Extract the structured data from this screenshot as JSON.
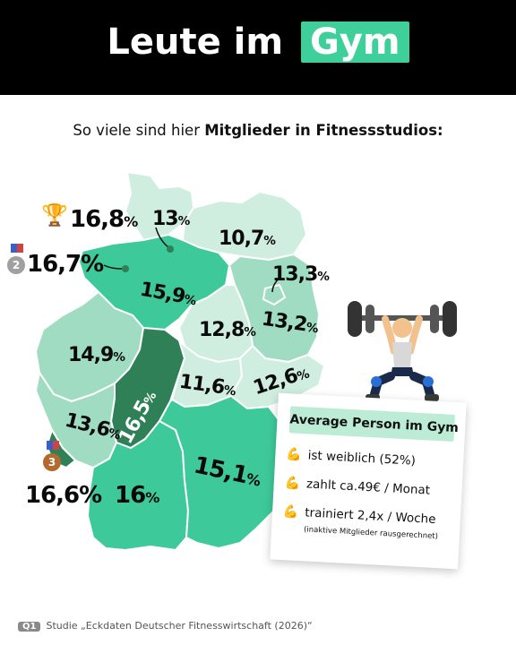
{
  "header": {
    "title_prefix": "Leute im",
    "title_highlight": "Gym"
  },
  "subtitle": {
    "text_prefix": "So viele sind hier ",
    "text_bold": "Mitglieder in Fitnessstudios:"
  },
  "states": [
    {
      "id": "schleswig-holstein",
      "value": "13",
      "pct": "%"
    },
    {
      "id": "hamburg",
      "value": "16,8",
      "pct": "%",
      "rank": "trophy"
    },
    {
      "id": "bremen",
      "value": "16,7%",
      "rank": "2"
    },
    {
      "id": "mecklenburg-vorpommern",
      "value": "10,7",
      "pct": "%"
    },
    {
      "id": "berlin",
      "value": "13,3",
      "pct": "%"
    },
    {
      "id": "niedersachsen",
      "value": "15,9",
      "pct": "%"
    },
    {
      "id": "sachsen-anhalt",
      "value": "12,8",
      "pct": "%"
    },
    {
      "id": "brandenburg",
      "value": "13,2",
      "pct": "%"
    },
    {
      "id": "nordrhein-westfalen",
      "value": "14,9",
      "pct": "%"
    },
    {
      "id": "hessen",
      "value": "16,5",
      "pct": "%"
    },
    {
      "id": "thueringen",
      "value": "11,6",
      "pct": "%"
    },
    {
      "id": "sachsen",
      "value": "12,6",
      "pct": "%"
    },
    {
      "id": "rheinland-pfalz",
      "value": "13,6",
      "pct": "%"
    },
    {
      "id": "saarland",
      "value": "16,6%",
      "rank": "3"
    },
    {
      "id": "baden-wuerttemberg",
      "value": "16",
      "pct": "%"
    },
    {
      "id": "bayern",
      "value": "15,1",
      "pct": "%"
    }
  ],
  "colors": {
    "light": "#cfeee0",
    "mid": "#9fdcc2",
    "strong": "#3ec99a",
    "darkest": "#2f7f57",
    "highlight": "#3ecf9a"
  },
  "info_card": {
    "heading": "Average Person im Gym",
    "rows": [
      {
        "icon": "flexed-biceps-icon",
        "text": "ist weiblich (52%)"
      },
      {
        "icon": "flexed-biceps-icon",
        "text": "zahlt ca.49€ / Monat"
      },
      {
        "icon": "flexed-biceps-icon",
        "text": "trainiert 2,4x / Woche"
      }
    ],
    "note": "(inaktive Mitglieder rausgerechnet)"
  },
  "footer": {
    "tag": "Q1",
    "source": "Studie „Eckdaten Deutscher Fitnesswirtschaft (2026)“"
  }
}
